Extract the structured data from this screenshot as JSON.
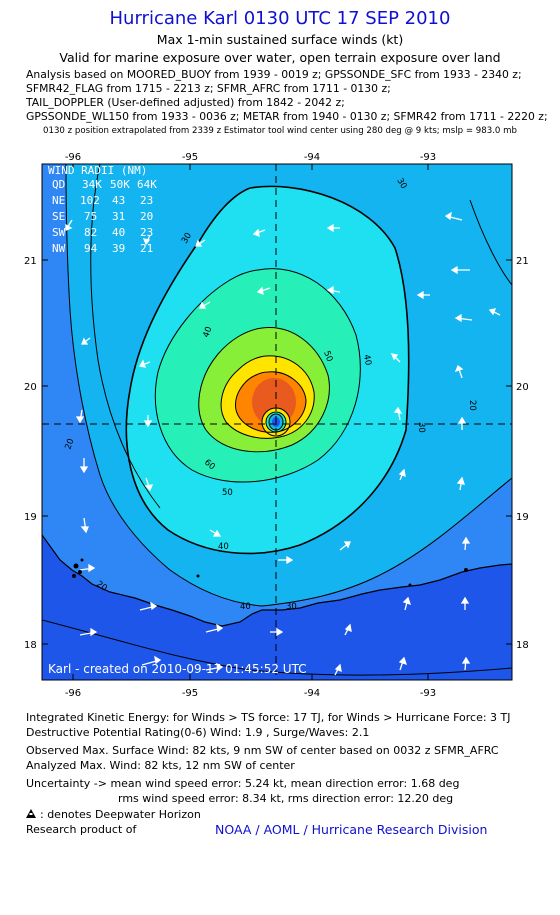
{
  "header": {
    "title": "Hurricane Karl 0130 UTC 17 SEP 2010",
    "subtitle1": "Max 1-min sustained surface winds (kt)",
    "subtitle2": "Valid for marine exposure over water, open terrain exposure over land",
    "analysis_lines": [
      "Analysis based on MOORED_BUOY from 1939 - 0019 z; GPSSONDE_SFC from 1933 - 2340 z;",
      "SFMR42_FLAG from 1715 - 2213 z; SFMR_AFRC from 1711 - 0130 z;",
      "TAIL_DOPPLER (User-defined adjusted) from 1842 - 2042 z;",
      "GPSSONDE_WL150 from 1933 - 0036 z; METAR from 1940 - 0130 z; SFMR42 from 1711 - 2220 z;"
    ],
    "position_note": "0130 z position extrapolated from 2339 z Estimator tool wind center using 280 deg @ 9 kts; mslp = 983.0 mb"
  },
  "map": {
    "lon_ticks": [
      "-96",
      "-95",
      "-94",
      "-93"
    ],
    "lat_ticks": [
      "21",
      "20",
      "19",
      "18"
    ],
    "contour_labels": [
      "30",
      "30",
      "30",
      "30",
      "40",
      "40",
      "40",
      "40",
      "50",
      "50",
      "60",
      "20",
      "20",
      "20"
    ],
    "credit": "Karl - created on 2010-09-17 01:45:52 UTC",
    "wind_radii": {
      "title": "WIND RADII (NM)",
      "header": [
        "QD",
        "34K",
        "50K",
        "64K"
      ],
      "rows": [
        [
          "NE",
          "102",
          "43",
          "23"
        ],
        [
          "SE",
          "75",
          "31",
          "20"
        ],
        [
          "SW",
          "82",
          "40",
          "23"
        ],
        [
          "NW",
          "94",
          "39",
          "21"
        ]
      ]
    },
    "colors": {
      "land": "#1e56ea",
      "ocean_20kt": "#2f87f5",
      "wind_30": "#14b4f0",
      "wind_40": "#1ee0f0",
      "wind_50": "#26f0b8",
      "wind_60": "#88ef38",
      "wind_70": "#ffe400",
      "wind_80": "#ff8400",
      "core": "#e85a1e"
    }
  },
  "footer": {
    "ike": "Integrated Kinetic Energy:  for Winds > TS force: 17 TJ,  for Winds > Hurricane Force: 3 TJ",
    "dpr": "Destructive Potential Rating(0-6)   Wind: 1.9 , Surge/Waves: 2.1",
    "observed": "Observed Max. Surface Wind: 82 kts, 9 nm SW of center based on 0032 z SFMR_AFRC",
    "analyzed": "Analyzed Max. Wind: 82 kts, 12 nm SW of center",
    "uncert1": "Uncertainty -> mean wind speed error: 5.24 kt,   mean direction error: 1.68 deg",
    "uncert2": "rms wind speed error: 8.34 kt,   rms direction error: 12.20 deg",
    "deepwater": ": denotes Deepwater Horizon",
    "research": "Research product of",
    "noaa": "NOAA / AOML / Hurricane Research Division"
  }
}
